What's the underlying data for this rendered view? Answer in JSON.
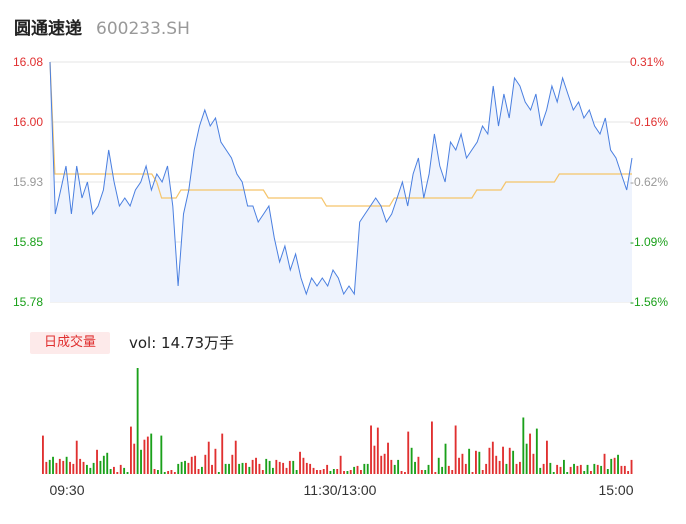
{
  "header": {
    "name": "圆通速递",
    "code": "600233.SH"
  },
  "volume_badge": "日成交量",
  "volume_text": "vol: 14.73万手",
  "colors": {
    "price": "#4a7fe0",
    "avg": "#f5c46a",
    "up": "#e03030",
    "down": "#1aa01a",
    "grid": "#e6e6e6",
    "fill": "#eef3fd"
  },
  "chart_data": [
    {
      "type": "line",
      "title": "",
      "yticks_left": [
        "16.08",
        "16.00",
        "15.93",
        "15.85",
        "15.78"
      ],
      "yticks_right": [
        "0.31%",
        "-0.16%",
        "-0.62%",
        "-1.09%",
        "-1.56%"
      ],
      "ylim": [
        15.78,
        16.08
      ],
      "xticks": [
        "09:30",
        "11:30/13:00",
        "15:00"
      ],
      "series": [
        {
          "values": [
            16.08,
            15.89,
            15.92,
            15.95,
            15.89,
            15.95,
            15.91,
            15.93,
            15.89,
            15.9,
            15.92,
            15.97,
            15.93,
            15.9,
            15.91,
            15.9,
            15.92,
            15.93,
            15.95,
            15.92,
            15.94,
            15.93,
            15.95,
            15.9,
            15.8,
            15.89,
            15.92,
            15.97,
            16.0,
            16.02,
            16.0,
            16.01,
            15.98,
            15.97,
            15.96,
            15.94,
            15.93,
            15.9,
            15.9,
            15.88,
            15.89,
            15.9,
            15.86,
            15.83,
            15.85,
            15.82,
            15.84,
            15.81,
            15.79,
            15.81,
            15.8,
            15.81,
            15.8,
            15.82,
            15.81,
            15.79,
            15.8,
            15.79,
            15.88,
            15.89,
            15.9,
            15.91,
            15.9,
            15.88,
            15.89,
            15.91,
            15.93,
            15.9,
            15.94,
            15.96,
            15.91,
            15.94,
            15.99,
            15.95,
            15.93,
            15.98,
            15.97,
            15.99,
            15.96,
            15.97,
            15.98,
            16.0,
            15.99,
            16.05,
            16.0,
            16.04,
            16.01,
            16.06,
            16.05,
            16.03,
            16.02,
            16.04,
            16.0,
            16.02,
            16.05,
            16.03,
            16.06,
            16.04,
            16.02,
            16.03,
            16.01,
            16.02,
            16.0,
            15.99,
            16.01,
            15.97,
            15.96,
            15.94,
            15.92,
            15.96
          ]
        },
        {
          "values": [
            16.08,
            15.94,
            15.94,
            15.94,
            15.94,
            15.94,
            15.94,
            15.94,
            15.94,
            15.94,
            15.94,
            15.94,
            15.94,
            15.94,
            15.94,
            15.94,
            15.94,
            15.94,
            15.94,
            15.94,
            15.94,
            15.94,
            15.93,
            15.91,
            15.91,
            15.91,
            15.91,
            15.92,
            15.92,
            15.92,
            15.92,
            15.92,
            15.92,
            15.92,
            15.92,
            15.92,
            15.92,
            15.92,
            15.92,
            15.92,
            15.92,
            15.92,
            15.92,
            15.92,
            15.92,
            15.91,
            15.91,
            15.91,
            15.91,
            15.91,
            15.91,
            15.91,
            15.91,
            15.91,
            15.91,
            15.91,
            15.91,
            15.9,
            15.9,
            15.9,
            15.9,
            15.9,
            15.9,
            15.9,
            15.9,
            15.9,
            15.9,
            15.9,
            15.9,
            15.9,
            15.9,
            15.91,
            15.91,
            15.91,
            15.91,
            15.91,
            15.91,
            15.91,
            15.91,
            15.91,
            15.91,
            15.91,
            15.91,
            15.91,
            15.91,
            15.91,
            15.91,
            15.91,
            15.92,
            15.92,
            15.92,
            15.92,
            15.92,
            15.92,
            15.93,
            15.93,
            15.93,
            15.93,
            15.93,
            15.93,
            15.93,
            15.93,
            15.93,
            15.93,
            15.93,
            15.94,
            15.94,
            15.94,
            15.94,
            15.94,
            15.94,
            15.94,
            15.94,
            15.94,
            15.94,
            15.94,
            15.94,
            15.94,
            15.94,
            15.94,
            15.94
          ]
        }
      ]
    },
    {
      "type": "bar",
      "title": "",
      "values": [
        38,
        12,
        14,
        17,
        11,
        15,
        13,
        17,
        12,
        10,
        33,
        15,
        12,
        9,
        6,
        11,
        24,
        13,
        18,
        21,
        5,
        7,
        2,
        9,
        6,
        2,
        47,
        30,
        105,
        24,
        34,
        37,
        40,
        5,
        4,
        38,
        2,
        3,
        4,
        2,
        10,
        12,
        13,
        11,
        17,
        18,
        5,
        7,
        19,
        32,
        9,
        25,
        2,
        40,
        10,
        10,
        19,
        33,
        10,
        11,
        11,
        7,
        14,
        16,
        10,
        4,
        15,
        13,
        6,
        14,
        12,
        11,
        6,
        13,
        13,
        4,
        22,
        16,
        11,
        10,
        6,
        4,
        4,
        5,
        9,
        3,
        5,
        5,
        18,
        3,
        3,
        4,
        7,
        8,
        4,
        10,
        10,
        48,
        28,
        46,
        18,
        20,
        31,
        14,
        9,
        14,
        3,
        2,
        42,
        26,
        12,
        17,
        4,
        4,
        9,
        52,
        2,
        16,
        7,
        30,
        8,
        4,
        48,
        16,
        20,
        10,
        25,
        2,
        23,
        22,
        4,
        10,
        26,
        32,
        18,
        13,
        27,
        10,
        26,
        23,
        10,
        12,
        56,
        30,
        40,
        20,
        45,
        6,
        10,
        33,
        11,
        2,
        9,
        7,
        14,
        2,
        7,
        10,
        8,
        9,
        3,
        9,
        3,
        10,
        9,
        8,
        20,
        5,
        15,
        16,
        19,
        8,
        8,
        3,
        14
      ],
      "colors": [
        "up",
        "up",
        "down",
        "down",
        "up",
        "up",
        "up",
        "down",
        "up",
        "up",
        "up",
        "up",
        "up",
        "down",
        "down",
        "down",
        "up",
        "down",
        "down",
        "down",
        "down",
        "up",
        "up",
        "up",
        "down",
        "down",
        "up",
        "up",
        "down",
        "down",
        "up",
        "up",
        "down",
        "up",
        "down",
        "down",
        "down",
        "up",
        "up",
        "up",
        "down",
        "down",
        "down",
        "up",
        "up",
        "up",
        "up",
        "down",
        "up",
        "up",
        "up",
        "up",
        "down",
        "up",
        "down",
        "down",
        "up",
        "up",
        "down",
        "down",
        "up",
        "down",
        "up",
        "up",
        "up",
        "up",
        "down",
        "down",
        "down",
        "up",
        "up",
        "up",
        "up",
        "up",
        "down",
        "down",
        "up",
        "up",
        "up",
        "up",
        "up",
        "up",
        "up",
        "up",
        "up",
        "down",
        "down",
        "up",
        "up",
        "up",
        "down",
        "up",
        "down",
        "up",
        "up",
        "down",
        "down",
        "up",
        "up",
        "up",
        "up",
        "up",
        "up",
        "up",
        "down",
        "down",
        "up",
        "up",
        "up",
        "down",
        "down",
        "up",
        "up",
        "down",
        "down",
        "up",
        "up",
        "down",
        "down",
        "down",
        "up",
        "up",
        "up",
        "up",
        "up",
        "up",
        "down",
        "up",
        "up",
        "down",
        "up",
        "up",
        "up",
        "up",
        "up",
        "up",
        "up",
        "down",
        "up",
        "down",
        "up",
        "up",
        "down",
        "down",
        "up",
        "up",
        "down",
        "down",
        "up",
        "up",
        "down",
        "down",
        "up",
        "up",
        "down",
        "down",
        "up",
        "down",
        "up",
        "up",
        "down",
        "down",
        "up",
        "down",
        "up",
        "down",
        "up",
        "down",
        "down",
        "up",
        "down",
        "up",
        "up",
        "up",
        "up"
      ]
    }
  ]
}
